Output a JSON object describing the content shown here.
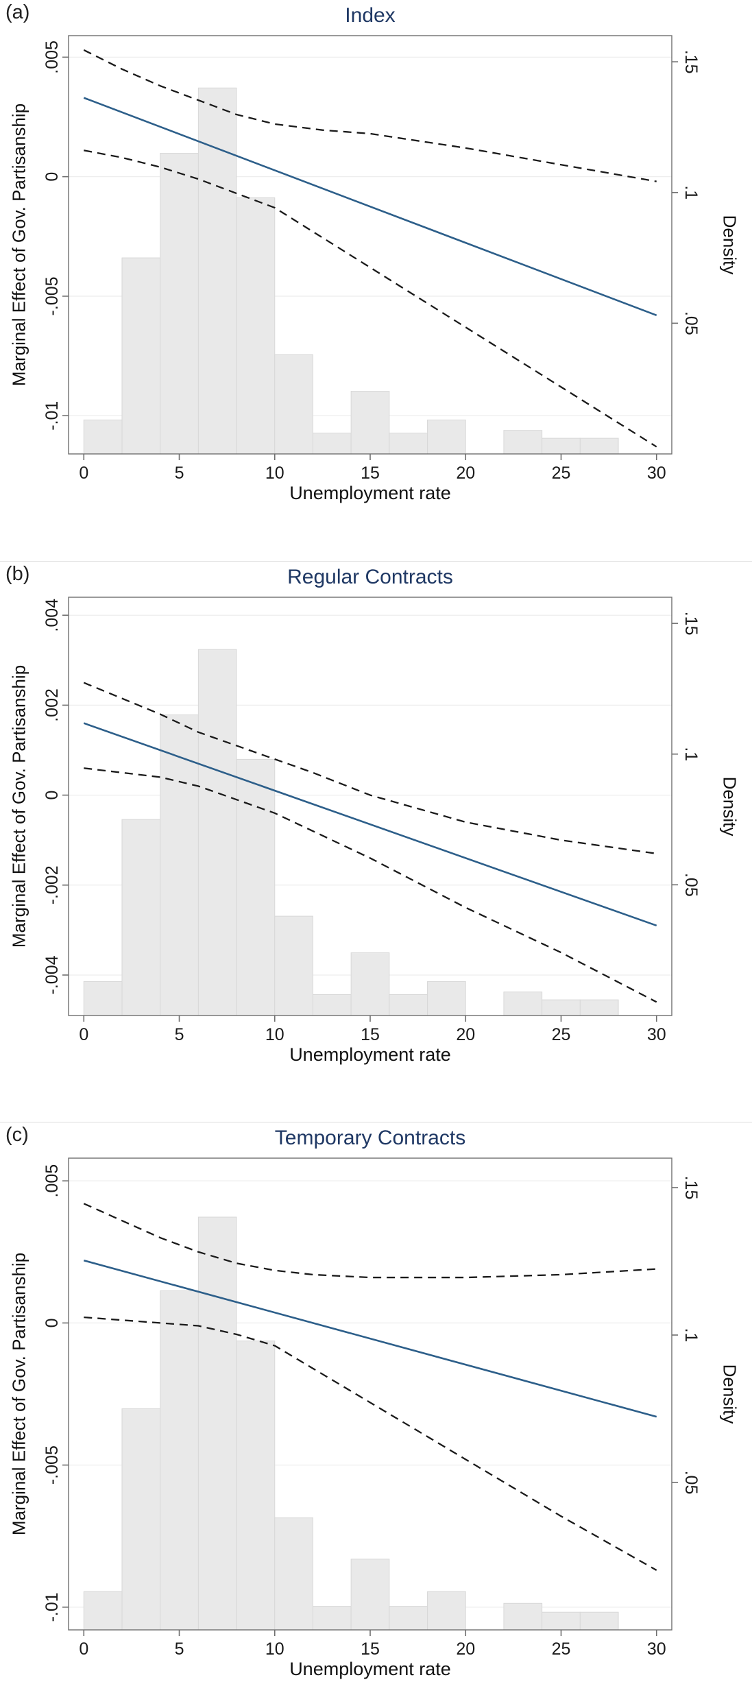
{
  "colors": {
    "title": "#1f3864",
    "effect_line": "#2d5f8a",
    "ci_line": "#1a1a1a",
    "hist_fill": "#e9e9e9",
    "hist_stroke": "#d8d8d8",
    "grid": "#ededed",
    "frame": "#6f6f6f",
    "tick_text": "#1a1a1a"
  },
  "chart_data": [
    {
      "type": "line",
      "panel_label": "(a)",
      "title": "Index",
      "xlabel": "Unemployment rate",
      "ylabel": "Marginal Effect of Gov. Partisanship",
      "ylabel_right": "Density",
      "legend": "off",
      "grid": "on",
      "xlim": [
        -0.8,
        30.8
      ],
      "xticks": [
        0,
        5,
        10,
        15,
        20,
        25,
        30
      ],
      "ylim_left": [
        -0.0116,
        0.0059
      ],
      "yticks_left": [
        {
          "v": 0.005,
          "label": ".005"
        },
        {
          "v": 0,
          "label": "0"
        },
        {
          "v": -0.005,
          "label": "-.005"
        },
        {
          "v": -0.01,
          "label": "-.01"
        }
      ],
      "ylim_right": [
        0,
        0.16
      ],
      "yticks_right": [
        {
          "v": 0.05,
          "label": ".05"
        },
        {
          "v": 0.1,
          "label": ".1"
        },
        {
          "v": 0.15,
          "label": ".15"
        }
      ],
      "histogram": {
        "name": "unemployment-density",
        "bin_start": 0,
        "bin_width": 2,
        "densities": [
          0.013,
          0.075,
          0.115,
          0.14,
          0.098,
          0.038,
          0.008,
          0.024,
          0.008,
          0.013,
          0,
          0.009,
          0.006,
          0.006,
          0
        ]
      },
      "series": [
        {
          "name": "marginal-effect",
          "style": "solid",
          "x": [
            0,
            30
          ],
          "y": [
            0.0033,
            -0.0058
          ]
        },
        {
          "name": "ci-upper",
          "style": "dashed",
          "x": [
            0,
            2,
            4,
            6,
            8,
            10,
            12.5,
            15,
            20,
            25,
            30
          ],
          "y": [
            0.0053,
            0.0045,
            0.0038,
            0.0032,
            0.0026,
            0.0022,
            0.00195,
            0.0018,
            0.0012,
            0.0005,
            -0.0002
          ]
        },
        {
          "name": "ci-lower",
          "style": "dashed",
          "x": [
            0,
            2,
            4,
            6,
            8,
            10,
            15,
            20,
            25,
            30
          ],
          "y": [
            0.0011,
            0.0008,
            0.0004,
            -0.0001,
            -0.0007,
            -0.0013,
            -0.0038,
            -0.0063,
            -0.0088,
            -0.0113
          ]
        }
      ]
    },
    {
      "type": "line",
      "panel_label": "(b)",
      "title": "Regular Contracts",
      "xlabel": "Unemployment rate",
      "ylabel": "Marginal Effect of Gov. Partisanship",
      "ylabel_right": "Density",
      "legend": "off",
      "grid": "on",
      "xlim": [
        -0.8,
        30.8
      ],
      "xticks": [
        0,
        5,
        10,
        15,
        20,
        25,
        30
      ],
      "ylim_left": [
        -0.0049,
        0.0044
      ],
      "yticks_left": [
        {
          "v": 0.004,
          "label": ".004"
        },
        {
          "v": 0.002,
          "label": ".002"
        },
        {
          "v": 0,
          "label": "0"
        },
        {
          "v": -0.002,
          "label": "-.002"
        },
        {
          "v": -0.004,
          "label": "-.004"
        }
      ],
      "ylim_right": [
        0,
        0.16
      ],
      "yticks_right": [
        {
          "v": 0.05,
          "label": ".05"
        },
        {
          "v": 0.1,
          "label": ".1"
        },
        {
          "v": 0.15,
          "label": ".15"
        }
      ],
      "histogram": {
        "name": "unemployment-density",
        "bin_start": 0,
        "bin_width": 2,
        "densities": [
          0.013,
          0.075,
          0.115,
          0.14,
          0.098,
          0.038,
          0.008,
          0.024,
          0.008,
          0.013,
          0,
          0.009,
          0.006,
          0.006,
          0
        ]
      },
      "series": [
        {
          "name": "marginal-effect",
          "style": "solid",
          "x": [
            0,
            30
          ],
          "y": [
            0.0016,
            -0.0029
          ]
        },
        {
          "name": "ci-upper",
          "style": "dashed",
          "x": [
            0,
            2,
            4,
            6,
            8,
            10,
            12,
            15,
            20,
            25,
            30
          ],
          "y": [
            0.0025,
            0.00215,
            0.0018,
            0.0014,
            0.0011,
            0.0008,
            0.0005,
            0.0,
            -0.0006,
            -0.001,
            -0.0013
          ]
        },
        {
          "name": "ci-lower",
          "style": "dashed",
          "x": [
            0,
            2,
            4,
            6,
            8,
            10,
            15,
            20,
            25,
            30
          ],
          "y": [
            0.0006,
            0.0005,
            0.0004,
            0.0002,
            -0.0001,
            -0.0004,
            -0.0014,
            -0.0025,
            -0.0035,
            -0.0046
          ]
        }
      ]
    },
    {
      "type": "line",
      "panel_label": "(c)",
      "title": "Temporary Contracts",
      "xlabel": "Unemployment rate",
      "ylabel": "Marginal Effect of Gov. Partisanship",
      "ylabel_right": "Density",
      "legend": "off",
      "grid": "on",
      "xlim": [
        -0.8,
        30.8
      ],
      "xticks": [
        0,
        5,
        10,
        15,
        20,
        25,
        30
      ],
      "ylim_left": [
        -0.0108,
        0.0058
      ],
      "yticks_left": [
        {
          "v": 0.005,
          "label": ".005"
        },
        {
          "v": 0,
          "label": "0"
        },
        {
          "v": -0.005,
          "label": "-.005"
        },
        {
          "v": -0.01,
          "label": "-.01"
        }
      ],
      "ylim_right": [
        0,
        0.16
      ],
      "yticks_right": [
        {
          "v": 0.05,
          "label": ".05"
        },
        {
          "v": 0.1,
          "label": ".1"
        },
        {
          "v": 0.15,
          "label": ".15"
        }
      ],
      "histogram": {
        "name": "unemployment-density",
        "bin_start": 0,
        "bin_width": 2,
        "densities": [
          0.013,
          0.075,
          0.115,
          0.14,
          0.098,
          0.038,
          0.008,
          0.024,
          0.008,
          0.013,
          0,
          0.009,
          0.006,
          0.006,
          0
        ]
      },
      "series": [
        {
          "name": "marginal-effect",
          "style": "solid",
          "x": [
            0,
            30
          ],
          "y": [
            0.0022,
            -0.0033
          ]
        },
        {
          "name": "ci-upper",
          "style": "dashed",
          "x": [
            0,
            2,
            4,
            6,
            8,
            10,
            12,
            15,
            20,
            25,
            30
          ],
          "y": [
            0.0042,
            0.0036,
            0.003,
            0.0025,
            0.0021,
            0.00185,
            0.0017,
            0.0016,
            0.0016,
            0.0017,
            0.0019
          ]
        },
        {
          "name": "ci-lower",
          "style": "dashed",
          "x": [
            0,
            2,
            4,
            6,
            8,
            10,
            15,
            20,
            25,
            30
          ],
          "y": [
            0.0002,
            0.0001,
            0.0,
            -0.0001,
            -0.0004,
            -0.0008,
            -0.0028,
            -0.0048,
            -0.0068,
            -0.0087
          ]
        }
      ]
    }
  ]
}
